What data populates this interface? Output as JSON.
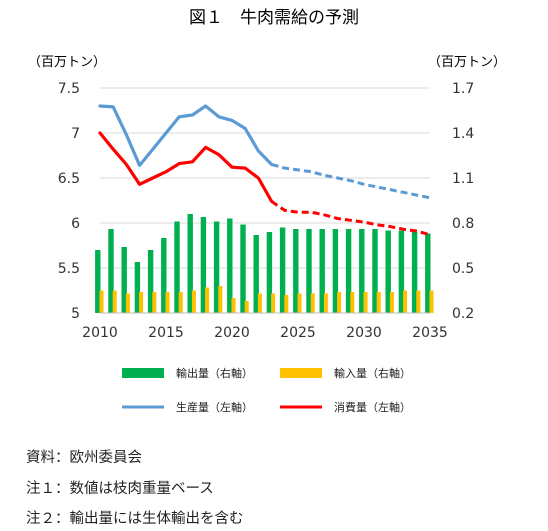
{
  "chart_data": {
    "type": "bar",
    "title": "図１　牛肉需給の予測",
    "left_axis_unit": "（百万トン）",
    "right_axis_unit": "（百万トン）",
    "x_ticks": [
      "2010",
      "2015",
      "2020",
      "2025",
      "2030",
      "2035"
    ],
    "left_axis": {
      "ylim": [
        5,
        7.5
      ],
      "ticks": [
        "5",
        "5.5",
        "6",
        "6.5",
        "7",
        "7.5"
      ]
    },
    "right_axis": {
      "ylim": [
        0.2,
        1.7
      ],
      "ticks": [
        "0.2",
        "0.5",
        "0.8",
        "1.1",
        "1.4",
        "1.7"
      ]
    },
    "grid": true,
    "legend_position": "bottom",
    "x": [
      2010,
      2011,
      2012,
      2013,
      2014,
      2015,
      2016,
      2017,
      2018,
      2019,
      2020,
      2021,
      2022,
      2023,
      2024,
      2025,
      2026,
      2027,
      2028,
      2029,
      2030,
      2031,
      2032,
      2033,
      2034,
      2035
    ],
    "forecast_from": 2023,
    "series": [
      {
        "name": "輸出量（右軸）",
        "type": "bar",
        "axis": "right",
        "color": "#00b050",
        "values": [
          0.62,
          0.76,
          0.64,
          0.54,
          0.62,
          0.7,
          0.81,
          0.86,
          0.84,
          0.81,
          0.83,
          0.79,
          0.72,
          0.74,
          0.77,
          0.76,
          0.76,
          0.76,
          0.76,
          0.76,
          0.76,
          0.76,
          0.75,
          0.75,
          0.74,
          0.73
        ]
      },
      {
        "name": "輸入量（右軸）",
        "type": "bar",
        "axis": "right",
        "color": "#ffc000",
        "values": [
          0.35,
          0.35,
          0.33,
          0.34,
          0.34,
          0.34,
          0.34,
          0.35,
          0.37,
          0.38,
          0.3,
          0.28,
          0.33,
          0.33,
          0.32,
          0.33,
          0.33,
          0.33,
          0.34,
          0.34,
          0.34,
          0.34,
          0.34,
          0.35,
          0.35,
          0.35
        ]
      },
      {
        "name": "生産量（左軸）",
        "type": "line",
        "axis": "left",
        "color": "#5b9bd5",
        "values": [
          7.3,
          7.29,
          6.98,
          6.64,
          6.82,
          7.0,
          7.18,
          7.2,
          7.3,
          7.18,
          7.14,
          7.05,
          6.8,
          6.65,
          6.61,
          6.59,
          6.57,
          6.53,
          6.5,
          6.47,
          6.43,
          6.4,
          6.37,
          6.34,
          6.31,
          6.28
        ]
      },
      {
        "name": "消費量（左軸）",
        "type": "line",
        "axis": "left",
        "color": "#ff0000",
        "values": [
          7.0,
          6.82,
          6.65,
          6.43,
          6.5,
          6.57,
          6.66,
          6.68,
          6.84,
          6.76,
          6.62,
          6.61,
          6.5,
          6.24,
          6.14,
          6.12,
          6.12,
          6.09,
          6.05,
          6.03,
          6.01,
          5.98,
          5.96,
          5.93,
          5.91,
          5.87
        ]
      }
    ]
  },
  "notes": [
    "資料：欧州委員会",
    "注１：数値は枝肉重量ベース",
    "注２：輸出量には生体輸出を含む"
  ]
}
